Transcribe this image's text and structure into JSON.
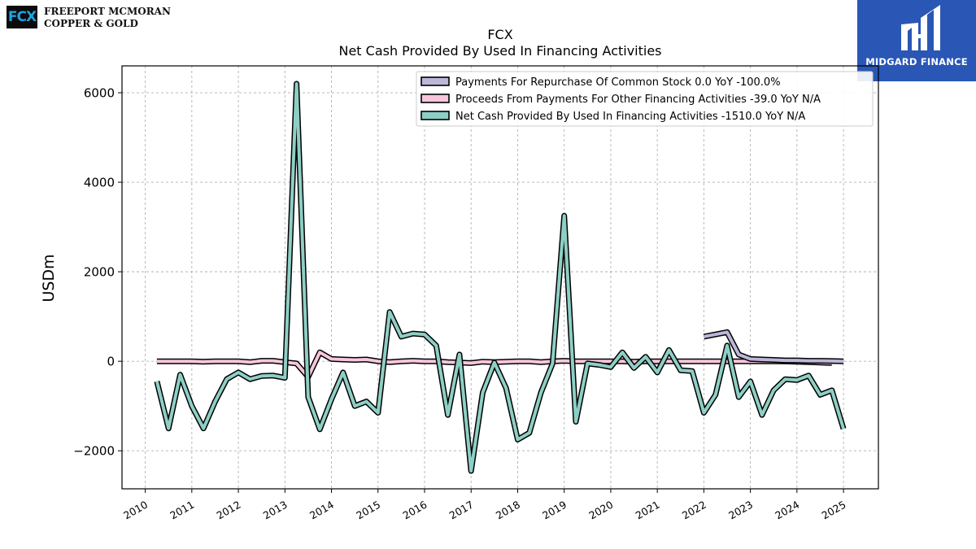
{
  "logos": {
    "fcx_mark": "FCX",
    "fcx_line1": "FREEPORT MCMORAN",
    "fcx_line2": "COPPER & GOLD",
    "midgard_name": "MIDGARD FINANCE"
  },
  "colors": {
    "repurchase": "#bcb6d9",
    "proceeds": "#f7c6dc",
    "net_cash": "#8ecfc5",
    "midgard_bg": "#2a56b5"
  },
  "chart_data": {
    "type": "line",
    "title": "FCX",
    "subtitle": "Net Cash Provided By Used In Financing Activities",
    "ylabel": "USDm",
    "xlabel": "",
    "ylim": [
      -2850,
      6600
    ],
    "xlim": [
      2009.5,
      2025.75
    ],
    "yticks": [
      -2000,
      0,
      2000,
      4000,
      6000
    ],
    "ytick_labels": [
      "−2000",
      "0",
      "2000",
      "4000",
      "6000"
    ],
    "xticks": [
      2010,
      2011,
      2012,
      2013,
      2014,
      2015,
      2016,
      2017,
      2018,
      2019,
      2020,
      2021,
      2022,
      2023,
      2024,
      2025
    ],
    "xtick_labels": [
      "2010",
      "2011",
      "2012",
      "2013",
      "2014",
      "2015",
      "2016",
      "2017",
      "2018",
      "2019",
      "2020",
      "2021",
      "2022",
      "2023",
      "2024",
      "2025"
    ],
    "grid": true,
    "legend_position": "top-right",
    "legend": [
      "Payments For Repurchase Of Common Stock  0.0 YoY -100.0%",
      "Proceeds From Payments For Other Financing Activities  -39.0 YoY N/A",
      "Net Cash Provided By Used In Financing Activities  -1510.0 YoY N/A"
    ],
    "series": [
      {
        "key": "repurchase",
        "x": [
          2022.0,
          2022.25,
          2022.5,
          2022.75,
          2023.0,
          2023.25,
          2023.5,
          2023.75,
          2024.0,
          2024.25,
          2024.5,
          2024.75,
          2025.0
        ],
        "y": [
          550,
          600,
          650,
          150,
          50,
          40,
          30,
          20,
          20,
          10,
          10,
          5,
          0
        ]
      },
      {
        "key": "proceeds",
        "x": [
          2010.25,
          2010.5,
          2010.75,
          2011.0,
          2011.25,
          2011.5,
          2011.75,
          2012.0,
          2012.25,
          2012.5,
          2012.75,
          2013.0,
          2013.25,
          2013.5,
          2013.75,
          2014.0,
          2014.25,
          2014.5,
          2014.75,
          2015.0,
          2015.25,
          2015.5,
          2015.75,
          2016.0,
          2016.25,
          2016.5,
          2016.75,
          2017.0,
          2017.25,
          2017.5,
          2017.75,
          2018.0,
          2018.25,
          2018.5,
          2018.75,
          2019.0,
          2019.25,
          2019.5,
          2019.75,
          2020.0,
          2020.25,
          2020.5,
          2020.75,
          2021.0,
          2021.25,
          2021.5,
          2021.75,
          2022.0,
          2022.25,
          2022.5,
          2022.75,
          2023.0,
          2023.25,
          2023.5,
          2023.75,
          2024.0,
          2024.25,
          2024.5,
          2024.75
        ],
        "y": [
          0,
          0,
          0,
          0,
          -10,
          0,
          0,
          0,
          -20,
          10,
          10,
          -20,
          -50,
          -350,
          200,
          50,
          40,
          30,
          40,
          0,
          -20,
          0,
          10,
          0,
          0,
          -20,
          -30,
          -40,
          -10,
          -20,
          -10,
          0,
          0,
          -20,
          0,
          10,
          0,
          0,
          0,
          0,
          0,
          -10,
          0,
          0,
          0,
          0,
          0,
          0,
          0,
          0,
          0,
          0,
          0,
          0,
          -5,
          -10,
          -20,
          -30,
          -39
        ]
      },
      {
        "key": "net_cash",
        "x": [
          2010.25,
          2010.5,
          2010.75,
          2011.0,
          2011.25,
          2011.5,
          2011.75,
          2012.0,
          2012.25,
          2012.5,
          2012.75,
          2013.0,
          2013.25,
          2013.5,
          2013.75,
          2014.0,
          2014.25,
          2014.5,
          2014.75,
          2015.0,
          2015.25,
          2015.5,
          2015.75,
          2016.0,
          2016.25,
          2016.5,
          2016.75,
          2017.0,
          2017.25,
          2017.5,
          2017.75,
          2018.0,
          2018.25,
          2018.5,
          2018.75,
          2019.0,
          2019.25,
          2019.5,
          2019.75,
          2020.0,
          2020.25,
          2020.5,
          2020.75,
          2021.0,
          2021.25,
          2021.5,
          2021.75,
          2022.0,
          2022.25,
          2022.5,
          2022.75,
          2023.0,
          2023.25,
          2023.5,
          2023.75,
          2024.0,
          2024.25,
          2024.5,
          2024.75,
          2025.0
        ],
        "y": [
          -450,
          -1500,
          -300,
          -1000,
          -1500,
          -900,
          -400,
          -250,
          -400,
          -330,
          -320,
          -370,
          6200,
          -800,
          -1520,
          -850,
          -250,
          -1000,
          -900,
          -1150,
          1100,
          550,
          620,
          600,
          350,
          -1200,
          150,
          -2450,
          -700,
          -30,
          -600,
          -1750,
          -1600,
          -700,
          -50,
          3250,
          -1350,
          -50,
          -80,
          -130,
          200,
          -150,
          100,
          -250,
          250,
          -200,
          -220,
          -1150,
          -750,
          350,
          -800,
          -450,
          -1200,
          -650,
          -400,
          -420,
          -320,
          -750,
          -650,
          -1510
        ]
      }
    ]
  }
}
